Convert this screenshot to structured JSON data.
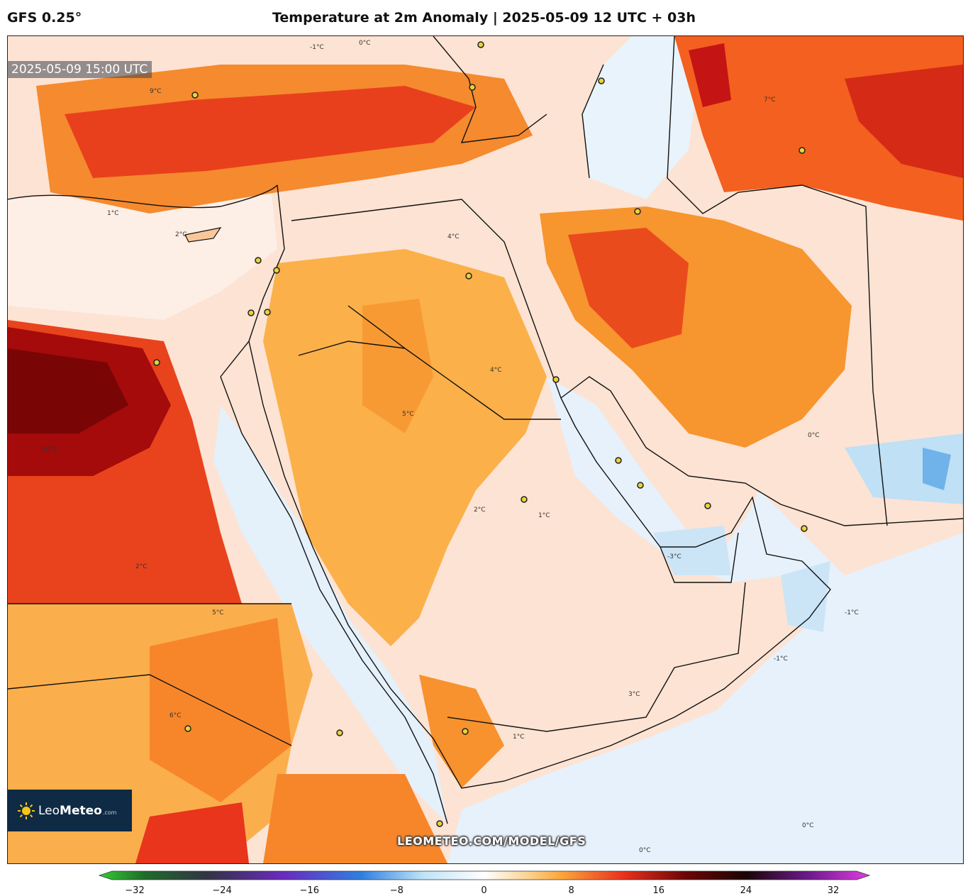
{
  "header": {
    "model": "GFS 0.25°",
    "title": "Temperature at 2m Anomaly | 2025-05-09 12 UTC + 03h"
  },
  "map": {
    "valid_time": "2025-05-09 15:00 UTC",
    "watermark": "LEOMETEO.COM/MODEL/GFS",
    "logo": {
      "name_light": "Leo",
      "name_bold": "Meteo",
      "suffix": ".com"
    },
    "contour_labels": [
      "-1°C",
      "0°C",
      "1°C",
      "2°C",
      "3°C",
      "4°C",
      "5°C",
      "6°C",
      "7°C",
      "9°C",
      "10°C",
      "-3°C"
    ]
  },
  "colorbar": {
    "min": -32,
    "max": 32,
    "ticks": [
      "−32",
      "−24",
      "−16",
      "−8",
      "0",
      "8",
      "16",
      "24",
      "32"
    ],
    "colors": {
      "green": "#33cc33",
      "dark_green": "#1f6b2a",
      "purple": "#6a2bbf",
      "blue": "#2f7fe0",
      "light_blue": "#bfe3f7",
      "white": "#ffffff",
      "orange": "#fba63a",
      "red": "#e8321e",
      "dark_red": "#6e0606",
      "black": "#1a0505",
      "magenta": "#e23be0"
    }
  }
}
